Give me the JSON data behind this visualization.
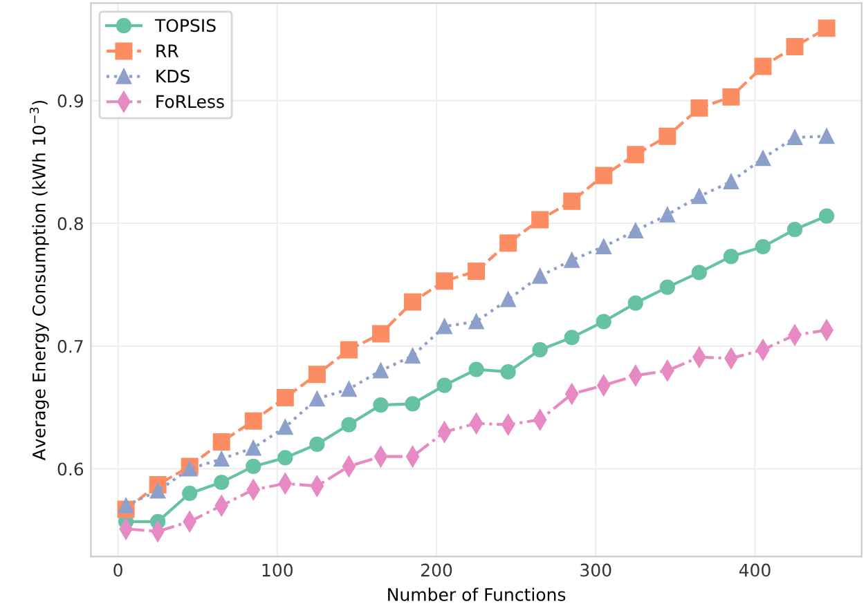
{
  "chart_data": {
    "type": "line",
    "xlabel": "Number of Functions",
    "ylabel": "Average Energy Consumption (kWh 10$^{−3}$)",
    "x": [
      5,
      25,
      45,
      65,
      85,
      105,
      125,
      145,
      165,
      185,
      205,
      225,
      245,
      265,
      285,
      305,
      325,
      345,
      365,
      385,
      405,
      425,
      445
    ],
    "series": [
      {
        "name": "TOPSIS",
        "color": "#66c2a5",
        "marker": "circle",
        "line_style": "solid",
        "values": [
          0.557,
          0.557,
          0.58,
          0.589,
          0.602,
          0.609,
          0.62,
          0.636,
          0.652,
          0.653,
          0.668,
          0.681,
          0.679,
          0.697,
          0.707,
          0.72,
          0.735,
          0.748,
          0.76,
          0.773,
          0.781,
          0.795,
          0.806
        ]
      },
      {
        "name": "RR",
        "color": "#fc8d62",
        "marker": "square",
        "line_style": "dashed",
        "values": [
          0.567,
          0.587,
          0.602,
          0.622,
          0.639,
          0.658,
          0.677,
          0.697,
          0.71,
          0.736,
          0.753,
          0.761,
          0.784,
          0.803,
          0.818,
          0.839,
          0.856,
          0.871,
          0.894,
          0.903,
          0.928,
          0.944,
          0.959
        ]
      },
      {
        "name": "KDS",
        "color": "#8da0cb",
        "marker": "triangle",
        "line_style": "dotted",
        "values": [
          0.57,
          0.582,
          0.6,
          0.608,
          0.617,
          0.634,
          0.657,
          0.665,
          0.68,
          0.692,
          0.716,
          0.72,
          0.738,
          0.757,
          0.77,
          0.781,
          0.794,
          0.807,
          0.822,
          0.834,
          0.853,
          0.87,
          0.871
        ]
      },
      {
        "name": "FoRLess",
        "color": "#e78ac3",
        "marker": "diamond",
        "line_style": "dashdot",
        "values": [
          0.551,
          0.549,
          0.557,
          0.57,
          0.583,
          0.588,
          0.586,
          0.602,
          0.61,
          0.61,
          0.63,
          0.637,
          0.636,
          0.64,
          0.661,
          0.668,
          0.676,
          0.68,
          0.691,
          0.69,
          0.697,
          0.709,
          0.713
        ]
      }
    ],
    "xlim": [
      -17,
      467
    ],
    "xticks": [
      0,
      100,
      200,
      300,
      400
    ],
    "ylim": [
      0.5285,
      0.9795
    ],
    "yticks": [
      0.6,
      0.7,
      0.8,
      0.9
    ],
    "grid": true,
    "legend": "top left"
  }
}
